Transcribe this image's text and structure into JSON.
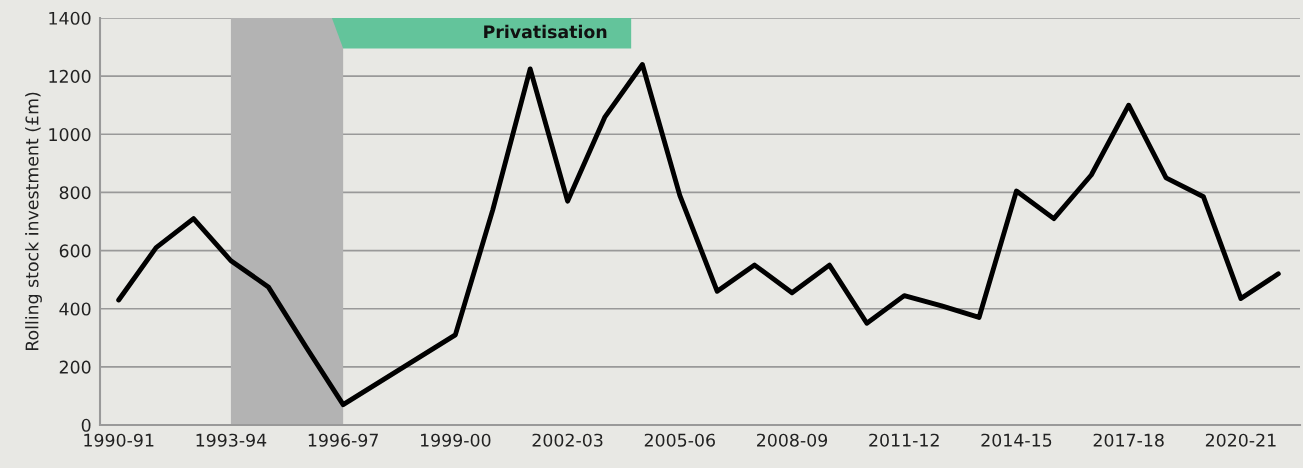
{
  "chart_data": {
    "type": "line",
    "ylabel": "Rolling stock investment (£m)",
    "categories": [
      "1990-91",
      null,
      null,
      "1993-94",
      null,
      null,
      "1996-97",
      null,
      null,
      "1999-00",
      null,
      null,
      "2002-03",
      null,
      null,
      "2005-06",
      null,
      null,
      "2008-09",
      null,
      null,
      "2011-12",
      null,
      null,
      "2014-15",
      null,
      null,
      "2017-18",
      null,
      null,
      "2020-21",
      null
    ],
    "series": [
      {
        "color": "#000000",
        "values": [
          430,
          610,
          710,
          565,
          475,
          270,
          70,
          150,
          230,
          310,
          740,
          1225,
          770,
          1060,
          1240,
          790,
          460,
          550,
          455,
          550,
          350,
          445,
          410,
          370,
          805,
          710,
          860,
          1100,
          850,
          785,
          435,
          520
        ]
      }
    ],
    "ylim": [
      0,
      1400
    ],
    "yticks": [
      0,
      200,
      400,
      600,
      800,
      1000,
      1200,
      1400
    ],
    "grid": "y",
    "legend": false,
    "marker": "none",
    "line_style": "solid",
    "bands": [
      {
        "axis": "x",
        "from": "1993-94",
        "to": "1996-97",
        "color": "#b3b3b3"
      }
    ],
    "annotations": [
      "Privatisation"
    ]
  }
}
